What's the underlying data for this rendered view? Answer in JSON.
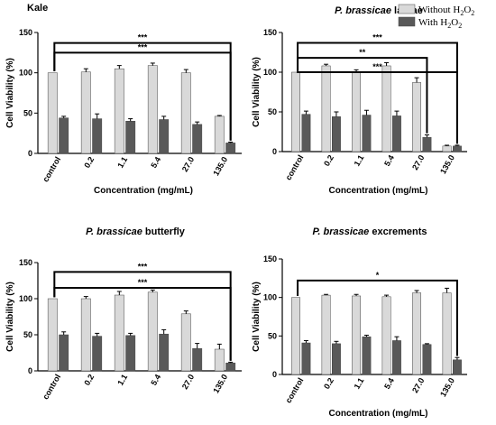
{
  "legend": {
    "items": [
      {
        "label": "Without H",
        "sub": "2",
        "tail": "O",
        "sub2": "2",
        "color": "#d9d9d9"
      },
      {
        "label": "With H",
        "sub": "2",
        "tail": "O",
        "sub2": "2",
        "color": "#595959"
      }
    ]
  },
  "chart_data": [
    {
      "type": "bar",
      "title": "Kale",
      "title_italic": "",
      "xlabel": "Concentration (mg/mL)",
      "ylabel": "Cell Viability (%)",
      "ylim": [
        0,
        150
      ],
      "yticks": [
        "0",
        "50",
        "100",
        "150"
      ],
      "categories": [
        "control",
        "0.2",
        "1.1",
        "5.4",
        "27.0",
        "135.0"
      ],
      "series": [
        {
          "name": "Without H2O2",
          "values": [
            100,
            101,
            105,
            109,
            100,
            46
          ],
          "errors": [
            0,
            4,
            4,
            3,
            4,
            1
          ]
        },
        {
          "name": "With H2O2",
          "values": [
            44,
            43,
            40,
            42,
            36,
            13
          ],
          "errors": [
            2,
            6,
            3,
            4,
            3,
            1
          ]
        }
      ],
      "significance": [
        {
          "label": "***",
          "from": "control",
          "to": "135.0",
          "level": 137
        },
        {
          "label": "***",
          "from": "control",
          "to": "135.0",
          "level": 125
        }
      ]
    },
    {
      "type": "bar",
      "title": "larvae",
      "title_italic": "P. brassicae",
      "xlabel": "Concentration (mg/mL)",
      "ylabel": "Cell Viability (%)",
      "ylim": [
        0,
        150
      ],
      "yticks": [
        "0",
        "50",
        "100",
        "150"
      ],
      "categories": [
        "control",
        "0.2",
        "1.1",
        "5.4",
        "27.0",
        "135.0"
      ],
      "series": [
        {
          "name": "Without H2O2",
          "values": [
            100,
            108,
            100,
            108,
            87,
            7
          ],
          "errors": [
            0,
            2,
            3,
            4,
            6,
            1
          ]
        },
        {
          "name": "With H2O2",
          "values": [
            47,
            44,
            46,
            45,
            18,
            7
          ],
          "errors": [
            4,
            6,
            6,
            6,
            3,
            1
          ]
        }
      ],
      "significance": [
        {
          "label": "***",
          "from": "control",
          "to": "135.0",
          "level": 137
        },
        {
          "label": "**",
          "from": "control",
          "to": "27.0",
          "level": 118
        },
        {
          "label": "***",
          "from": "control",
          "to": "135.0",
          "level": 100
        }
      ]
    },
    {
      "type": "bar",
      "title": "butterfly",
      "title_italic": "P. brassicae",
      "xlabel": "",
      "ylabel": "Cell Viability (%)",
      "ylim": [
        0,
        150
      ],
      "yticks": [
        "0",
        "50",
        "100",
        "150"
      ],
      "categories": [
        "control",
        "0.2",
        "1.1",
        "5.4",
        "27.0",
        "135.0"
      ],
      "series": [
        {
          "name": "Without H2O2",
          "values": [
            100,
            100,
            105,
            109,
            79,
            30
          ],
          "errors": [
            0,
            3,
            5,
            3,
            4,
            7
          ]
        },
        {
          "name": "With H2O2",
          "values": [
            50,
            48,
            49,
            51,
            31,
            11
          ],
          "errors": [
            4,
            4,
            3,
            6,
            7,
            1
          ]
        }
      ],
      "significance": [
        {
          "label": "***",
          "from": "control",
          "to": "135.0",
          "level": 137
        },
        {
          "label": "***",
          "from": "control",
          "to": "135.0",
          "level": 115
        }
      ]
    },
    {
      "type": "bar",
      "title": "excrements",
      "title_italic": "P. brassicae",
      "xlabel": "Concentration (mg/mL)",
      "ylabel": "Cell Viability (%)",
      "ylim": [
        0,
        150
      ],
      "yticks": [
        "0",
        "50",
        "100",
        "150"
      ],
      "categories": [
        "control",
        "0.2",
        "1.1",
        "5.4",
        "27.0",
        "135.0"
      ],
      "series": [
        {
          "name": "Without H2O2",
          "values": [
            100,
            103,
            102,
            101,
            106,
            106
          ],
          "errors": [
            0,
            1,
            2,
            2,
            3,
            6
          ]
        },
        {
          "name": "With H2O2",
          "values": [
            41,
            40,
            49,
            44,
            39,
            19
          ],
          "errors": [
            3,
            3,
            2,
            5,
            1,
            3
          ]
        }
      ],
      "significance": [
        {
          "label": "*",
          "from": "control",
          "to": "135.0",
          "level": 122
        }
      ]
    }
  ]
}
